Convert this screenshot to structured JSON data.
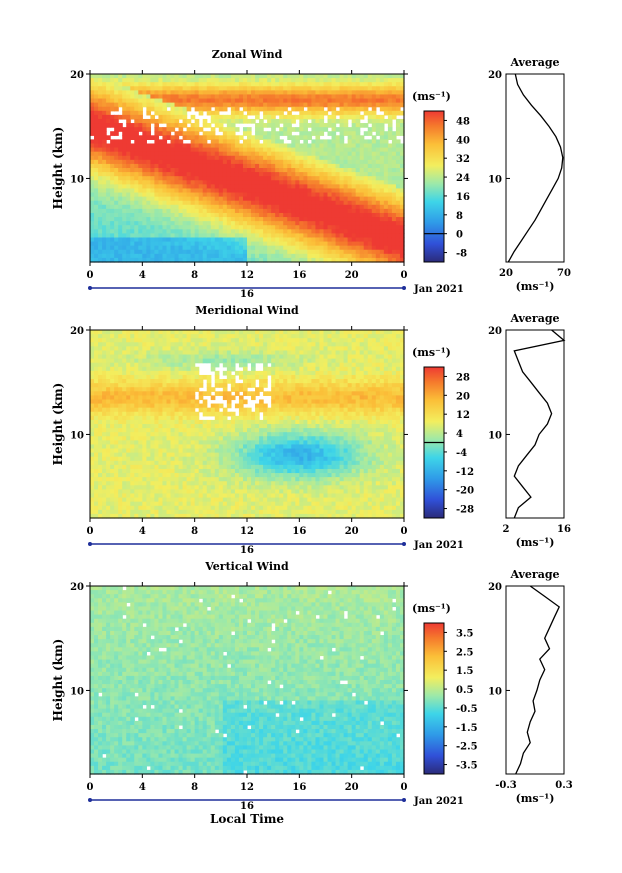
{
  "figure": {
    "xlabel": "Local Time",
    "date_label": "Jan 2021",
    "day_label": "16"
  },
  "chart_data": [
    {
      "type": "heatmap",
      "title": "Zonal Wind",
      "ylabel": "Height (km)",
      "x_ticks": [
        "0",
        "4",
        "8",
        "12",
        "16",
        "20",
        "0"
      ],
      "y_ticks": [
        "10",
        "20"
      ],
      "xlim": [
        0,
        24
      ],
      "ylim": [
        2,
        20
      ],
      "colorbar": {
        "unit_label": "(ms⁻¹)",
        "ticks": [
          "-8",
          "0",
          "8",
          "16",
          "24",
          "32",
          "40",
          "48"
        ],
        "range": [
          -12,
          52
        ]
      },
      "description_of_field": "Strong westerly jet (>48 m/s) descending from ~15 km at 0 LT to ~4 km at 24 LT; weaker winds (0-20 m/s) below; missing data (white) scattered at 13-17 km",
      "average_profile": {
        "title": "Average",
        "xlabel": "(ms⁻¹)",
        "x_ticks": [
          "20",
          "70"
        ],
        "y_ticks": [
          "10",
          "20"
        ],
        "xlim": [
          20,
          70
        ],
        "height_km": [
          2,
          3,
          4,
          5,
          6,
          7,
          8,
          9,
          10,
          11,
          12,
          13,
          14,
          15,
          16,
          17,
          18,
          19,
          20
        ],
        "values": [
          22,
          27,
          33,
          39,
          45,
          50,
          55,
          60,
          65,
          68,
          69,
          67,
          63,
          57,
          50,
          42,
          35,
          30,
          28
        ]
      }
    },
    {
      "type": "heatmap",
      "title": "Meridional Wind",
      "ylabel": "Height (km)",
      "x_ticks": [
        "0",
        "4",
        "8",
        "12",
        "16",
        "20",
        "0"
      ],
      "y_ticks": [
        "10",
        "20"
      ],
      "xlim": [
        0,
        24
      ],
      "ylim": [
        2,
        20
      ],
      "colorbar": {
        "unit_label": "(ms⁻¹)",
        "ticks": [
          "-28",
          "-20",
          "-12",
          "-4",
          "4",
          "12",
          "20",
          "28"
        ],
        "range": [
          -32,
          32
        ]
      },
      "description_of_field": "Mostly weak northward flow (4-20 m/s) with a band of stronger flow near 12-14 km; southward region (blue) around 5-10 km between 10-22 LT; zero contour drawn in black",
      "average_profile": {
        "title": "Average",
        "xlabel": "(ms⁻¹)",
        "x_ticks": [
          "2",
          "16"
        ],
        "y_ticks": [
          "10",
          "20"
        ],
        "xlim": [
          2,
          16
        ],
        "height_km": [
          2,
          3,
          4,
          5,
          6,
          7,
          8,
          9,
          10,
          11,
          12,
          13,
          14,
          15,
          16,
          17,
          18,
          19,
          20
        ],
        "values": [
          4,
          5,
          8,
          6,
          4,
          5,
          7,
          9,
          10,
          12,
          13,
          12,
          10,
          8,
          6,
          5,
          4,
          16,
          13
        ]
      }
    },
    {
      "type": "heatmap",
      "title": "Vertical Wind",
      "ylabel": "Height (km)",
      "x_ticks": [
        "0",
        "4",
        "8",
        "12",
        "16",
        "20",
        "0"
      ],
      "y_ticks": [
        "10",
        "20"
      ],
      "xlim": [
        0,
        24
      ],
      "ylim": [
        2,
        20
      ],
      "colorbar": {
        "unit_label": "(ms⁻¹)",
        "ticks": [
          "-3.5",
          "-2.5",
          "-1.5",
          "-0.5",
          "0.5",
          "1.5",
          "2.5",
          "3.5"
        ],
        "range": [
          -4,
          4
        ]
      },
      "description_of_field": "Near-zero vertical velocities (-0.5 to 0.5 m/s) everywhere, slightly positive aloft and slightly negative below 8 km after 10 LT",
      "average_profile": {
        "title": "Average",
        "xlabel": "(ms⁻¹)",
        "x_ticks": [
          "-0.3",
          "0.3"
        ],
        "y_ticks": [
          "10",
          "20"
        ],
        "xlim": [
          -0.3,
          0.3
        ],
        "height_km": [
          2,
          3,
          4,
          5,
          6,
          7,
          8,
          9,
          10,
          11,
          12,
          13,
          14,
          15,
          16,
          17,
          18,
          19,
          20
        ],
        "values": [
          -0.2,
          -0.15,
          -0.12,
          -0.05,
          -0.08,
          -0.05,
          0.0,
          -0.02,
          0.02,
          0.05,
          0.1,
          0.05,
          0.15,
          0.1,
          0.15,
          0.2,
          0.25,
          0.1,
          -0.05
        ]
      }
    }
  ]
}
